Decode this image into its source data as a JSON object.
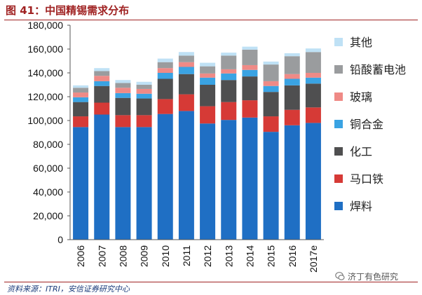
{
  "figure": {
    "title": "图 41：中国精锡需求分布",
    "source": "资料来源：ITRI，安信证券研究中心",
    "watermark": "济丁有色研究"
  },
  "colors": {
    "焊料": "#1f6fc4",
    "马口铁": "#d63a36",
    "化工": "#4f4f50",
    "铜合金": "#3aa3e3",
    "玻璃": "#ef8a86",
    "铅酸蓄电池": "#9a9c9e",
    "其他": "#bfe1f5"
  },
  "chart_data": {
    "type": "bar",
    "stacked": true,
    "title": "图 41：中国精锡需求分布",
    "categories": [
      "2006",
      "2007",
      "2008",
      "2009",
      "2010",
      "2011",
      "2012",
      "2013",
      "2014",
      "2015",
      "2016",
      "2017e"
    ],
    "series": [
      {
        "name": "焊料",
        "values": [
          94500,
          105000,
          94500,
          94500,
          105500,
          108000,
          97500,
          100500,
          102500,
          90500,
          96000,
          98000
        ]
      },
      {
        "name": "马口铁",
        "values": [
          9000,
          10000,
          10000,
          10000,
          12500,
          14000,
          14500,
          15000,
          14500,
          13000,
          13000,
          13000
        ]
      },
      {
        "name": "化工",
        "values": [
          12000,
          14000,
          14500,
          14000,
          17000,
          17000,
          18000,
          18500,
          20000,
          20500,
          20500,
          20000
        ]
      },
      {
        "name": "铜合金",
        "values": [
          4000,
          4000,
          4000,
          4000,
          5000,
          6000,
          6000,
          5500,
          5500,
          5000,
          5500,
          5000
        ]
      },
      {
        "name": "玻璃",
        "values": [
          4000,
          4500,
          4500,
          4000,
          4000,
          4000,
          3500,
          3500,
          4000,
          4000,
          4000,
          4000
        ]
      },
      {
        "name": "铅酸蓄电池",
        "values": [
          4000,
          4000,
          4000,
          3500,
          5000,
          5500,
          6000,
          11500,
          13000,
          14000,
          15000,
          17500
        ]
      },
      {
        "name": "其他",
        "values": [
          2000,
          2500,
          2500,
          2500,
          3000,
          3000,
          3000,
          2500,
          2500,
          2500,
          2500,
          3000
        ]
      }
    ],
    "legend_order": [
      "其他",
      "铅酸蓄电池",
      "玻璃",
      "铜合金",
      "化工",
      "马口铁",
      "焊料"
    ],
    "legend_position": "right",
    "ylim": [
      0,
      180000
    ],
    "yticks": [
      0,
      20000,
      40000,
      60000,
      80000,
      100000,
      120000,
      140000,
      160000,
      180000
    ],
    "ytick_labels": [
      "0",
      "20,000",
      "40,000",
      "60,000",
      "80,000",
      "100,000",
      "120,000",
      "140,000",
      "160,000",
      "180,000"
    ],
    "grid": false,
    "xlabel": "",
    "ylabel": ""
  }
}
